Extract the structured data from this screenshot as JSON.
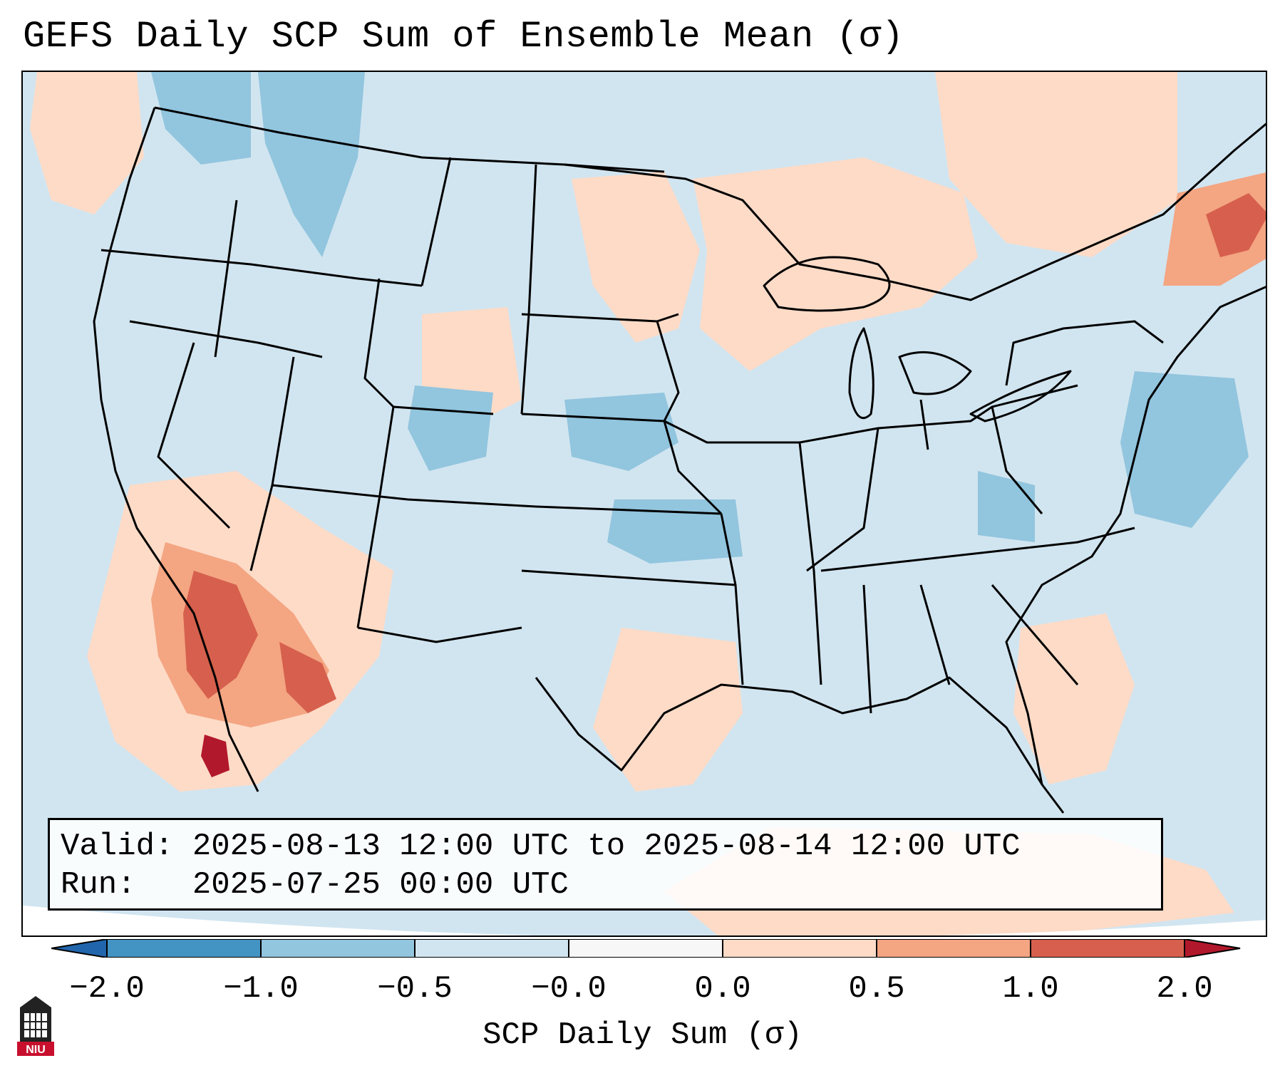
{
  "title": "GEFS Daily SCP Sum of Ensemble Mean (σ)",
  "info": {
    "valid_label": "Valid:",
    "valid_value": "2025-08-13 12:00 UTC to 2025-08-14 12:00 UTC",
    "run_label": "Run:",
    "run_value": "2025-07-25 00:00 UTC"
  },
  "colorbar": {
    "label": "SCP Daily Sum (σ)",
    "ticks": [
      "−2.0",
      "−1.0",
      "−0.5",
      "−0.0",
      "0.0",
      "0.5",
      "1.0",
      "2.0"
    ],
    "colors": [
      "#4393c3",
      "#92c5de",
      "#d1e5f0",
      "#f7f7f7",
      "#fddbc7",
      "#f4a582",
      "#d6604d"
    ],
    "extend_low_color": "#2166ac",
    "extend_high_color": "#b2182b"
  },
  "map": {
    "background_color": "#d1e5f0",
    "outside_color": "#ffffff",
    "border_color": "#000000"
  },
  "logo": {
    "text": "NIU",
    "color": "#c8102e"
  }
}
